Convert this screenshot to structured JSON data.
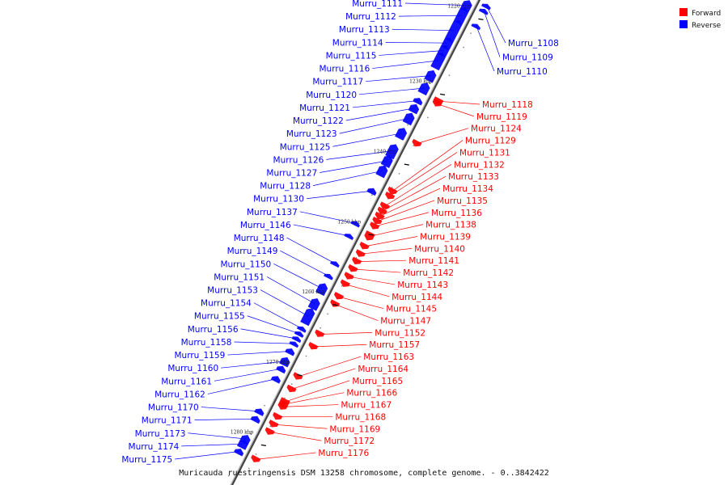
{
  "caption": "Muricauda ruestringensis DSM 13258 chromosome, complete genome. - 0..3842422",
  "legend": [
    {
      "label": "Forward",
      "color": "#ff0000"
    },
    {
      "label": "Reverse",
      "color": "#0000ff"
    }
  ],
  "colors": {
    "forward": "#ff0000",
    "reverse": "#0000ff",
    "backbone": "#888888"
  },
  "kbp_marks": [
    {
      "label": "1220 kbp",
      "t": 0.045
    },
    {
      "label": "1230 kbp",
      "t": 0.195
    },
    {
      "label": "1240 kbp",
      "t": 0.335
    },
    {
      "label": "1250 kbp",
      "t": 0.475
    },
    {
      "label": "1260 kbp",
      "t": 0.615
    },
    {
      "label": "1270 kbp",
      "t": 0.755
    },
    {
      "label": "1280 kbp",
      "t": 0.895
    }
  ],
  "reverse_genes": [
    {
      "label": "Murru_1111",
      "t": 0.035,
      "len": 0.02
    },
    {
      "label": "Murru_1112",
      "t": 0.055,
      "len": 0.03
    },
    {
      "label": "Murru_1113",
      "t": 0.085,
      "len": 0.04
    },
    {
      "label": "Murru_1114",
      "t": 0.11,
      "len": 0.02
    },
    {
      "label": "Murru_1115",
      "t": 0.125,
      "len": 0.02
    },
    {
      "label": "Murru_1116",
      "t": 0.145,
      "len": 0.03
    },
    {
      "label": "Murru_1117",
      "t": 0.175,
      "len": 0.02
    },
    {
      "label": "Murru_1120",
      "t": 0.2,
      "len": 0.02
    },
    {
      "label": "Murru_1121",
      "t": 0.225,
      "len": 0.01
    },
    {
      "label": "Murru_1122",
      "t": 0.24,
      "len": 0.015
    },
    {
      "label": "Murru_1123",
      "t": 0.26,
      "len": 0.02
    },
    {
      "label": "Murru_1125",
      "t": 0.29,
      "len": 0.02
    },
    {
      "label": "Murru_1126",
      "t": 0.325,
      "len": 0.025
    },
    {
      "label": "Murru_1127",
      "t": 0.345,
      "len": 0.02
    },
    {
      "label": "Murru_1128",
      "t": 0.365,
      "len": 0.02
    },
    {
      "label": "Murru_1130",
      "t": 0.405,
      "len": 0.01
    },
    {
      "label": "Murru_1137",
      "t": 0.47,
      "len": 0.005
    },
    {
      "label": "Murru_1146",
      "t": 0.495,
      "len": 0.005
    },
    {
      "label": "Murru_1148",
      "t": 0.55,
      "len": 0.005
    },
    {
      "label": "Murru_1149",
      "t": 0.575,
      "len": 0.005
    },
    {
      "label": "Murru_1150",
      "t": 0.6,
      "len": 0.02
    },
    {
      "label": "Murru_1151",
      "t": 0.63,
      "len": 0.02
    },
    {
      "label": "Murru_1153",
      "t": 0.655,
      "len": 0.03
    },
    {
      "label": "Murru_1154",
      "t": 0.68,
      "len": 0.005
    },
    {
      "label": "Murru_1155",
      "t": 0.69,
      "len": 0.005
    },
    {
      "label": "Murru_1156",
      "t": 0.7,
      "len": 0.005
    },
    {
      "label": "Murru_1158",
      "t": 0.71,
      "len": 0.005
    },
    {
      "label": "Murru_1159",
      "t": 0.725,
      "len": 0.01
    },
    {
      "label": "Murru_1160",
      "t": 0.745,
      "len": 0.015
    },
    {
      "label": "Murru_1161",
      "t": 0.76,
      "len": 0.01
    },
    {
      "label": "Murru_1162",
      "t": 0.78,
      "len": 0.01
    },
    {
      "label": "Murru_1170",
      "t": 0.845,
      "len": 0.01
    },
    {
      "label": "Murru_1171",
      "t": 0.86,
      "len": 0.01
    },
    {
      "label": "Murru_1173",
      "t": 0.9,
      "len": 0.015
    },
    {
      "label": "Murru_1174",
      "t": 0.91,
      "len": 0.015
    },
    {
      "label": "Murru_1175",
      "t": 0.925,
      "len": 0.01
    }
  ],
  "reverse_right_genes": [
    {
      "label": "Murru_1108",
      "t": 0.02,
      "len": 0.005
    },
    {
      "label": "Murru_1109",
      "t": 0.03,
      "len": 0.005
    },
    {
      "label": "Murru_1110",
      "t": 0.06,
      "len": 0.005
    }
  ],
  "forward_genes": [
    {
      "label": "Murru_1118",
      "t": 0.21,
      "len": 0.01
    },
    {
      "label": "Murru_1119",
      "t": 0.215,
      "len": 0.01
    },
    {
      "label": "Murru_1124",
      "t": 0.295,
      "len": 0.01
    },
    {
      "label": "Murru_1129",
      "t": 0.39,
      "len": 0.01
    },
    {
      "label": "Murru_1131",
      "t": 0.4,
      "len": 0.01
    },
    {
      "label": "Murru_1132",
      "t": 0.42,
      "len": 0.01
    },
    {
      "label": "Murru_1133",
      "t": 0.43,
      "len": 0.01
    },
    {
      "label": "Murru_1134",
      "t": 0.44,
      "len": 0.01
    },
    {
      "label": "Murru_1135",
      "t": 0.45,
      "len": 0.01
    },
    {
      "label": "Murru_1136",
      "t": 0.46,
      "len": 0.01
    },
    {
      "label": "Murru_1138",
      "t": 0.48,
      "len": 0.015
    },
    {
      "label": "Murru_1139",
      "t": 0.5,
      "len": 0.01
    },
    {
      "label": "Murru_1140",
      "t": 0.515,
      "len": 0.01
    },
    {
      "label": "Murru_1141",
      "t": 0.53,
      "len": 0.01
    },
    {
      "label": "Murru_1142",
      "t": 0.545,
      "len": 0.01
    },
    {
      "label": "Murru_1143",
      "t": 0.56,
      "len": 0.01
    },
    {
      "label": "Murru_1144",
      "t": 0.575,
      "len": 0.01
    },
    {
      "label": "Murru_1145",
      "t": 0.6,
      "len": 0.01
    },
    {
      "label": "Murru_1147",
      "t": 0.615,
      "len": 0.01
    },
    {
      "label": "Murru_1152",
      "t": 0.675,
      "len": 0.01
    },
    {
      "label": "Murru_1157",
      "t": 0.7,
      "len": 0.01
    },
    {
      "label": "Murru_1163",
      "t": 0.76,
      "len": 0.01
    },
    {
      "label": "Murru_1164",
      "t": 0.785,
      "len": 0.01
    },
    {
      "label": "Murru_1165",
      "t": 0.81,
      "len": 0.01
    },
    {
      "label": "Murru_1166",
      "t": 0.815,
      "len": 0.01
    },
    {
      "label": "Murru_1167",
      "t": 0.82,
      "len": 0.01
    },
    {
      "label": "Murru_1168",
      "t": 0.84,
      "len": 0.01
    },
    {
      "label": "Murru_1169",
      "t": 0.855,
      "len": 0.01
    },
    {
      "label": "Murru_1172",
      "t": 0.87,
      "len": 0.01
    },
    {
      "label": "Murru_1176",
      "t": 0.925,
      "len": 0.01
    }
  ]
}
